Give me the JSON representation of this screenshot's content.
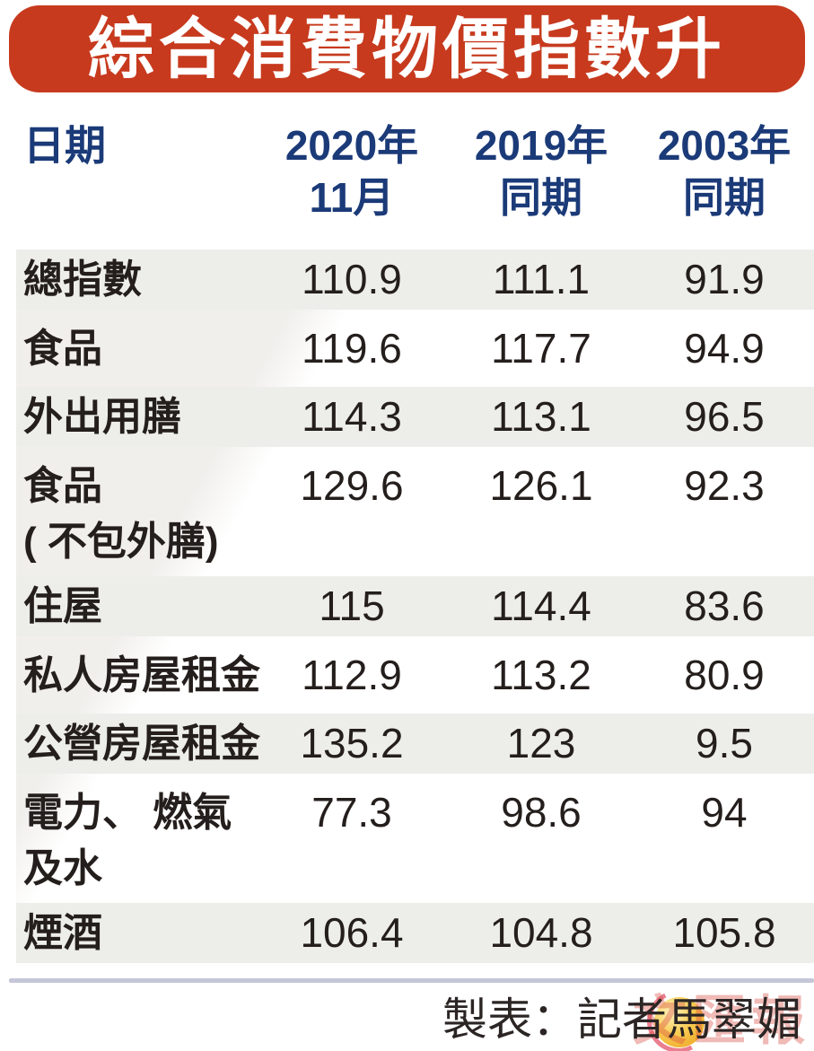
{
  "title": "綜合消費物價指數升",
  "colors": {
    "banner_bg": "#c73a1e",
    "banner_text": "#ffffff",
    "header_text": "#1b3a78",
    "body_text": "#241e1c",
    "row_shade": "#edeeea",
    "diagonal_sweep": "#f1efec",
    "divider": "#c5c6d8",
    "logo_gold": "#f0ae2e",
    "logo_red": "#d94b41"
  },
  "table": {
    "columns": [
      {
        "label": "日期",
        "sub": ""
      },
      {
        "label": "2020年",
        "sub": "11月"
      },
      {
        "label": "2019年",
        "sub": "同期"
      },
      {
        "label": "2003年",
        "sub": "同期"
      }
    ],
    "rows": [
      {
        "label": "總指數",
        "label2": "",
        "values": [
          "110.9",
          "111.1",
          "91.9"
        ],
        "shaded": true
      },
      {
        "label": "食品",
        "label2": "",
        "values": [
          "119.6",
          "117.7",
          "94.9"
        ],
        "shaded": false
      },
      {
        "label": "外出用膳",
        "label2": "",
        "values": [
          "114.3",
          "113.1",
          "96.5"
        ],
        "shaded": true
      },
      {
        "label": "食品",
        "label2": "( 不包外膳)",
        "values": [
          "129.6",
          "126.1",
          "92.3"
        ],
        "shaded": false
      },
      {
        "label": "住屋",
        "label2": "",
        "values": [
          "115",
          "114.4",
          "83.6"
        ],
        "shaded": true
      },
      {
        "label": "私人房屋租金",
        "label2": "",
        "values": [
          "112.9",
          "113.2",
          "80.9"
        ],
        "shaded": false
      },
      {
        "label": "公營房屋租金",
        "label2": "",
        "values": [
          "135.2",
          "123",
          "9.5"
        ],
        "shaded": true
      },
      {
        "label": "電力、 燃氣",
        "label2": "及水",
        "values": [
          "77.3",
          "98.6",
          "94"
        ],
        "shaded": false
      },
      {
        "label": "煙酒",
        "label2": "",
        "values": [
          "106.4",
          "104.8",
          "105.8"
        ],
        "shaded": true
      }
    ]
  },
  "footer": {
    "credit": "製表：記者",
    "author": "馬翠媚",
    "watermark": "文匯報"
  },
  "chart_data": {
    "type": "table",
    "title": "綜合消費物價指數升",
    "columns": [
      "日期",
      "2020年11月",
      "2019年同期",
      "2003年同期"
    ],
    "rows": [
      [
        "總指數",
        110.9,
        111.1,
        91.9
      ],
      [
        "食品",
        119.6,
        117.7,
        94.9
      ],
      [
        "外出用膳",
        114.3,
        113.1,
        96.5
      ],
      [
        "食品(不包外膳)",
        129.6,
        126.1,
        92.3
      ],
      [
        "住屋",
        115,
        114.4,
        83.6
      ],
      [
        "私人房屋租金",
        112.9,
        113.2,
        80.9
      ],
      [
        "公營房屋租金",
        135.2,
        123,
        9.5
      ],
      [
        "電力、燃氣及水",
        77.3,
        98.6,
        94
      ],
      [
        "煙酒",
        106.4,
        104.8,
        105.8
      ]
    ]
  }
}
